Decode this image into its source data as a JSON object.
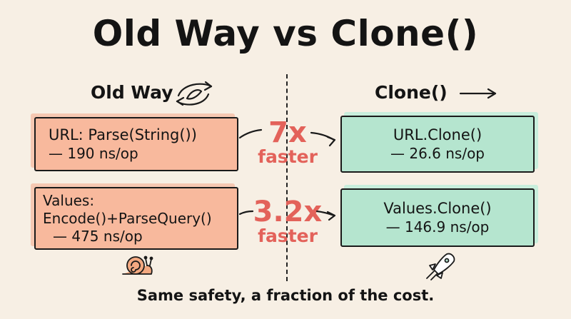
{
  "title": "Old Way vs Clone()",
  "left": {
    "heading": "Old Way",
    "boxes": [
      {
        "lines": [
          "URL: Parse(String())",
          "— 190 ns/op"
        ]
      },
      {
        "lines": [
          "Values:",
          "Encode()+ParseQuery()",
          "— 475 ns/op"
        ]
      }
    ]
  },
  "right": {
    "heading": "Clone()",
    "boxes": [
      {
        "lines": [
          "URL.Clone()",
          "— 26.6 ns/op"
        ]
      },
      {
        "lines": [
          "Values.Clone()",
          "— 146.9 ns/op"
        ]
      }
    ]
  },
  "speedups": [
    {
      "value": "7x",
      "label": "faster"
    },
    {
      "value": "3.2x",
      "label": "faster"
    }
  ],
  "footer": "Same safety, a fraction of the cost.",
  "colors": {
    "old_box": "#f8b99d",
    "new_box": "#b5e5cf",
    "speed_text": "#e3625a",
    "background": "#f7efe4"
  },
  "icons": [
    "cycle-arrows-icon",
    "right-arrow-icon",
    "snail-icon",
    "rocket-icon"
  ]
}
